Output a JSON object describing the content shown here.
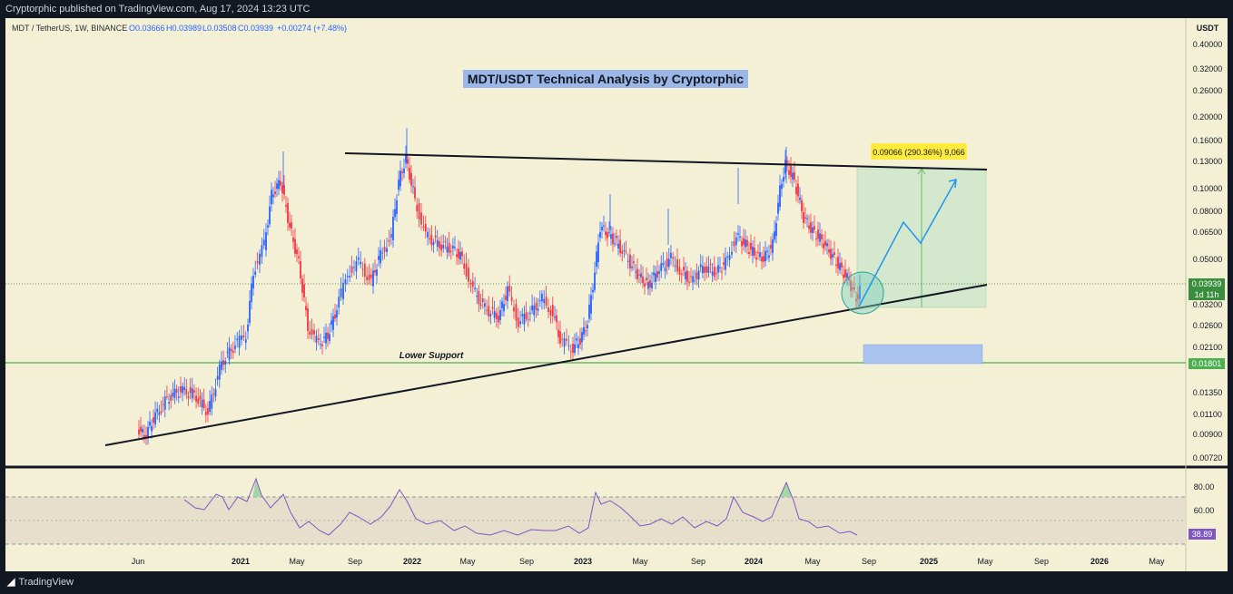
{
  "header": {
    "publish_line": "Cryptorphic published on TradingView.com, Aug 17, 2024 13:23 UTC"
  },
  "legend": {
    "symbol": "MDT / TetherUS, 1W, BINANCE",
    "open": "O0.03666",
    "high": "H0.03989",
    "low": "L0.03508",
    "close": "C0.03939",
    "change": "+0.00274 (+7.48%)"
  },
  "title": "MDT/USDT Technical Analysis by Cryptorphic",
  "annotations": {
    "lower_support": "Lower Support",
    "target_label": "0.09066 (290.36%) 9,066"
  },
  "price_axis": {
    "currency": "USDT",
    "ticks": [
      "0.40000",
      "0.32000",
      "0.26000",
      "0.20000",
      "0.16000",
      "0.13000",
      "0.10000",
      "0.08000",
      "0.06500",
      "0.05000",
      "0.03939",
      "0.03200",
      "0.02600",
      "0.02100",
      "0.01801",
      "0.01350",
      "0.01100",
      "0.00900",
      "0.00720"
    ],
    "current_price": "0.03939",
    "countdown": "1d 11h",
    "support_price": "0.01801"
  },
  "rsi_axis": {
    "ticks": [
      "80.00",
      "60.00"
    ],
    "current": "38.89"
  },
  "time_axis": {
    "labels": [
      "Jun",
      "2021",
      "May",
      "Sep",
      "2022",
      "May",
      "Sep",
      "2023",
      "May",
      "Sep",
      "2024",
      "May",
      "Sep",
      "2025",
      "May",
      "Sep",
      "2026",
      "May"
    ]
  },
  "footer": {
    "brand": "TradingView"
  },
  "colors": {
    "bull": "#2962ff",
    "bear": "#f23645",
    "rsi": "#7e57c2",
    "support": "#4caf50",
    "target_box": "#c8e6c9",
    "accent": "#2196f3"
  },
  "chart_data": {
    "type": "candlestick",
    "title": "MDT/USDT Technical Analysis by Cryptorphic",
    "y_scale": "log",
    "ylim": [
      0.0065,
      0.45
    ],
    "series": [
      {
        "name": "MDT / TetherUS, 1W, BINANCE",
        "x": [
          "2020-06",
          "2020-08",
          "2020-10",
          "2020-12",
          "2021-02",
          "2021-04",
          "2021-06",
          "2021-08",
          "2021-10",
          "2021-12",
          "2022-02",
          "2022-04",
          "2022-06",
          "2022-08",
          "2022-10",
          "2022-12",
          "2023-02",
          "2023-04",
          "2023-06",
          "2023-08",
          "2023-10",
          "2023-12",
          "2024-02",
          "2024-04",
          "2024-06",
          "2024-08"
        ],
        "values": [
          0.0085,
          0.0115,
          0.0128,
          0.0155,
          0.04,
          0.09,
          0.036,
          0.034,
          0.055,
          0.12,
          0.065,
          0.05,
          0.03,
          0.032,
          0.026,
          0.024,
          0.07,
          0.05,
          0.04,
          0.045,
          0.042,
          0.065,
          0.13,
          0.07,
          0.048,
          0.03939
        ]
      }
    ],
    "rsi": {
      "name": "RSI",
      "upper": 70,
      "lower": 30,
      "current": 38.89,
      "range": [
        0,
        100
      ]
    },
    "support_level": 0.01801,
    "target": {
      "price_change": 0.09066,
      "percent": 290.36,
      "ticks": 9066
    }
  }
}
